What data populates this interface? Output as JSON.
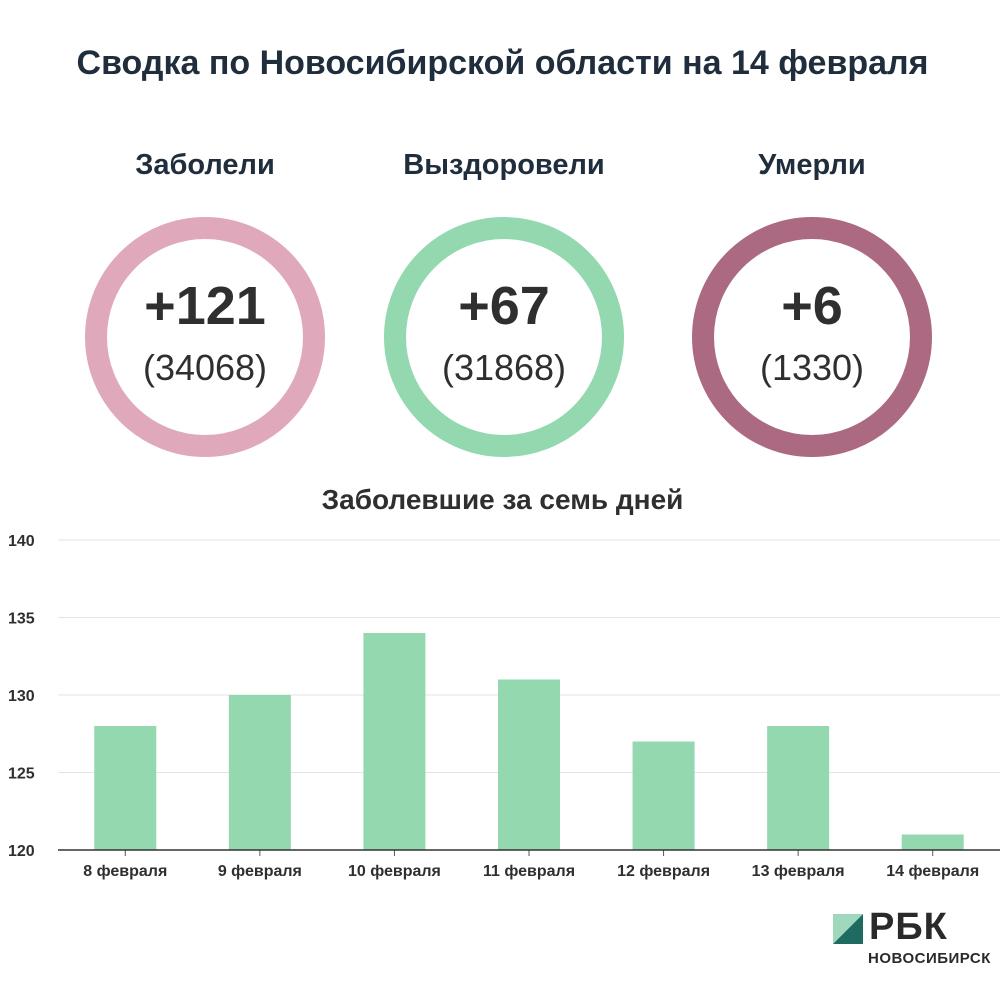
{
  "header": {
    "title": "Сводка по Новосибирской области на 14 февраля"
  },
  "stats": [
    {
      "label": "Заболели",
      "delta": "+121",
      "total": "(34068)",
      "color": "#dfa9bb"
    },
    {
      "label": "Выздоровели",
      "delta": "+67",
      "total": "(31868)",
      "color": "#93d8ae"
    },
    {
      "label": "Умерли",
      "delta": "+6",
      "total": "(1330)",
      "color": "#ab6a82"
    }
  ],
  "chart_data": {
    "type": "bar",
    "title": "Заболевшие за семь дней",
    "categories": [
      "8 февраля",
      "9 февраля",
      "10 февраля",
      "11 февраля",
      "12 февраля",
      "13 февраля",
      "14 февраля"
    ],
    "values": [
      128,
      130,
      134,
      131,
      127,
      128,
      121
    ],
    "ylim": [
      120,
      140
    ],
    "yticks": [
      120,
      125,
      130,
      135,
      140
    ],
    "grid": true,
    "bar_color": "#93d8ae",
    "xlabel": "",
    "ylabel": ""
  },
  "brand": {
    "name": "РБК",
    "sub": "НОВОСИБИРСК",
    "colors": [
      "#9fd8bd",
      "#1f6b62"
    ]
  }
}
